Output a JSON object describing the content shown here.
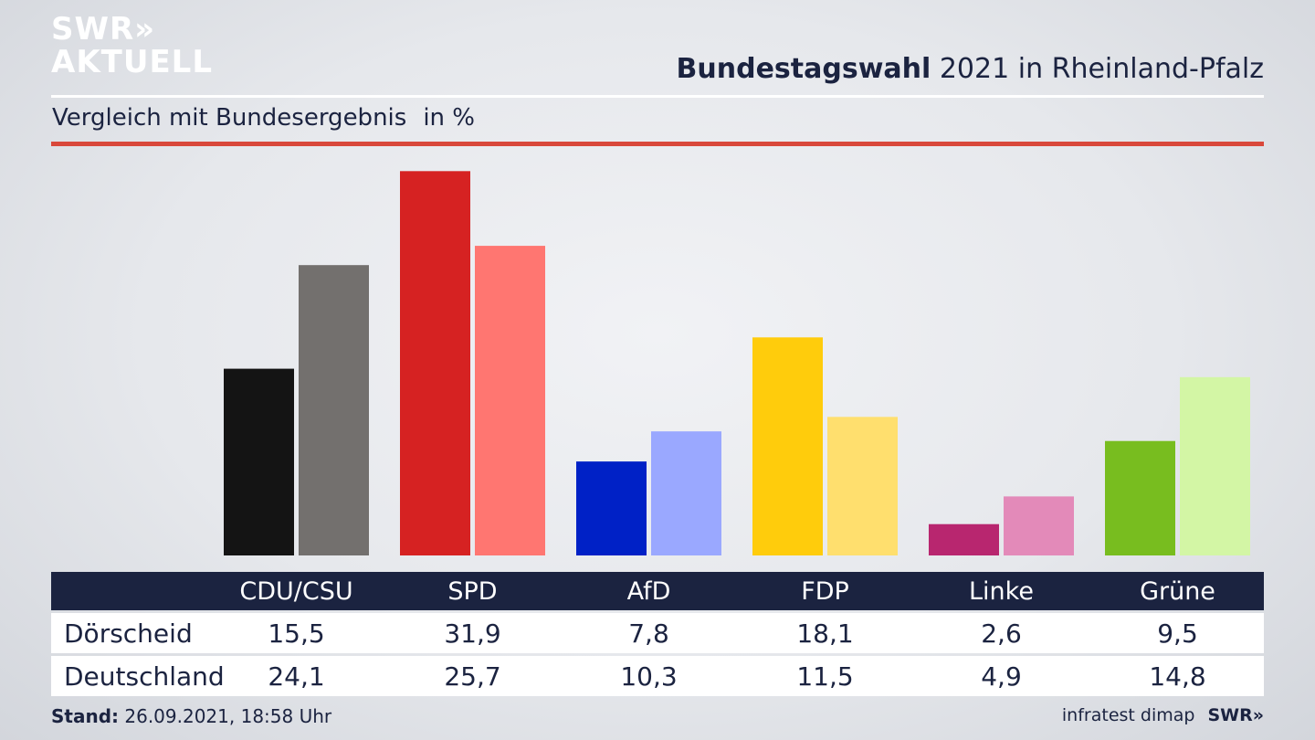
{
  "logo": {
    "line1": "SWR»",
    "line2": "AKTUELL"
  },
  "title": {
    "bold": "Bundestagswahl",
    "rest": " 2021 in Rheinland-Pfalz"
  },
  "subtitle": {
    "text": "Vergleich mit Bundesergebnis",
    "unit": "in %"
  },
  "chart_data": {
    "type": "bar",
    "title": "Bundestagswahl 2021 in Rheinland-Pfalz",
    "subtitle": "Vergleich mit Bundesergebnis in %",
    "categories": [
      "CDU/CSU",
      "SPD",
      "AfD",
      "FDP",
      "Linke",
      "Grüne"
    ],
    "series": [
      {
        "name": "Dörscheid",
        "values": [
          15.5,
          31.9,
          7.8,
          18.1,
          2.6,
          9.5
        ],
        "colors": [
          "#141414",
          "#d62222",
          "#0021c6",
          "#ffcc0c",
          "#b8266f",
          "#78bd1f"
        ]
      },
      {
        "name": "Deutschland",
        "values": [
          24.1,
          25.7,
          10.3,
          11.5,
          4.9,
          14.8
        ],
        "colors": [
          "#73706e",
          "#ff7671",
          "#9aa8ff",
          "#ffdf6e",
          "#e38ab9",
          "#d3f6a5"
        ]
      }
    ],
    "value_labels": [
      [
        "15,5",
        "31,9",
        "7,8",
        "18,1",
        "2,6",
        "9,5"
      ],
      [
        "24,1",
        "25,7",
        "10,3",
        "11,5",
        "4,9",
        "14,8"
      ]
    ],
    "ylim": [
      0,
      32
    ]
  },
  "table": {
    "row_labels": [
      "Dörscheid",
      "Deutschland"
    ]
  },
  "footer": {
    "stand_label": "Stand:",
    "stand_value": " 26.09.2021, 18:58 Uhr",
    "source": "infratest dimap",
    "brand": "SWR»"
  },
  "colors": {
    "navy": "#1b2340",
    "accent_red": "#d9483b"
  }
}
